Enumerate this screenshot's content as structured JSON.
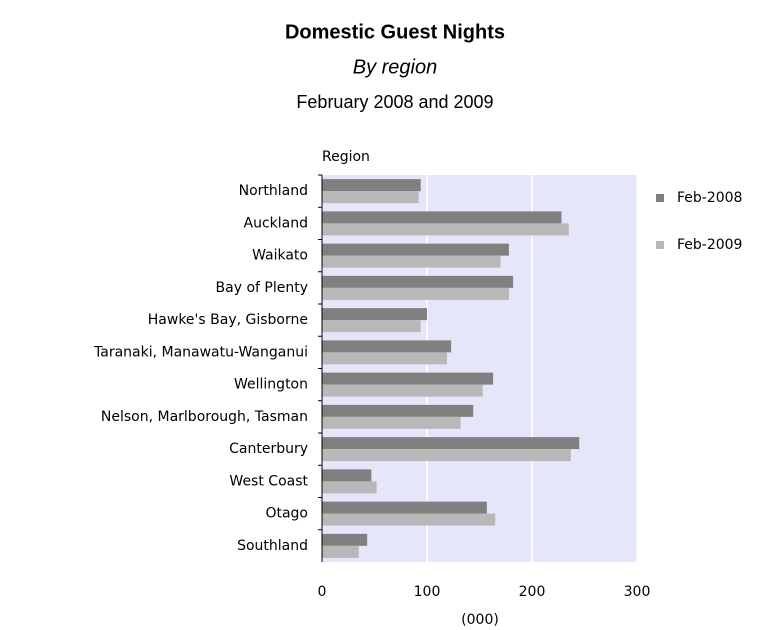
{
  "chart_data": {
    "type": "bar",
    "orientation": "horizontal",
    "title": "Domestic Guest Nights",
    "subtitle": "By region",
    "caption": "February 2008 and 2009",
    "y_axis_label": "Region",
    "x_axis_label": "(000)",
    "categories": [
      "Northland",
      "Auckland",
      "Waikato",
      "Bay of Plenty",
      "Hawke's Bay, Gisborne",
      "Taranaki, Manawatu-Wanganui",
      "Wellington",
      "Nelson, Marlborough, Tasman",
      "Canterbury",
      "West Coast",
      "Otago",
      "Southland"
    ],
    "series": [
      {
        "name": "Feb-2008",
        "color": "#808080",
        "values": [
          94,
          228,
          178,
          182,
          100,
          123,
          163,
          144,
          245,
          47,
          157,
          43
        ]
      },
      {
        "name": "Feb-2009",
        "color": "#b8b8b8",
        "values": [
          92,
          235,
          170,
          178,
          94,
          119,
          153,
          132,
          237,
          52,
          165,
          35
        ]
      }
    ],
    "xlim": [
      0,
      300
    ],
    "xticks": [
      0,
      100,
      200,
      300
    ],
    "grid": true,
    "legend": "right",
    "plot_background": "#e6e6fa"
  }
}
